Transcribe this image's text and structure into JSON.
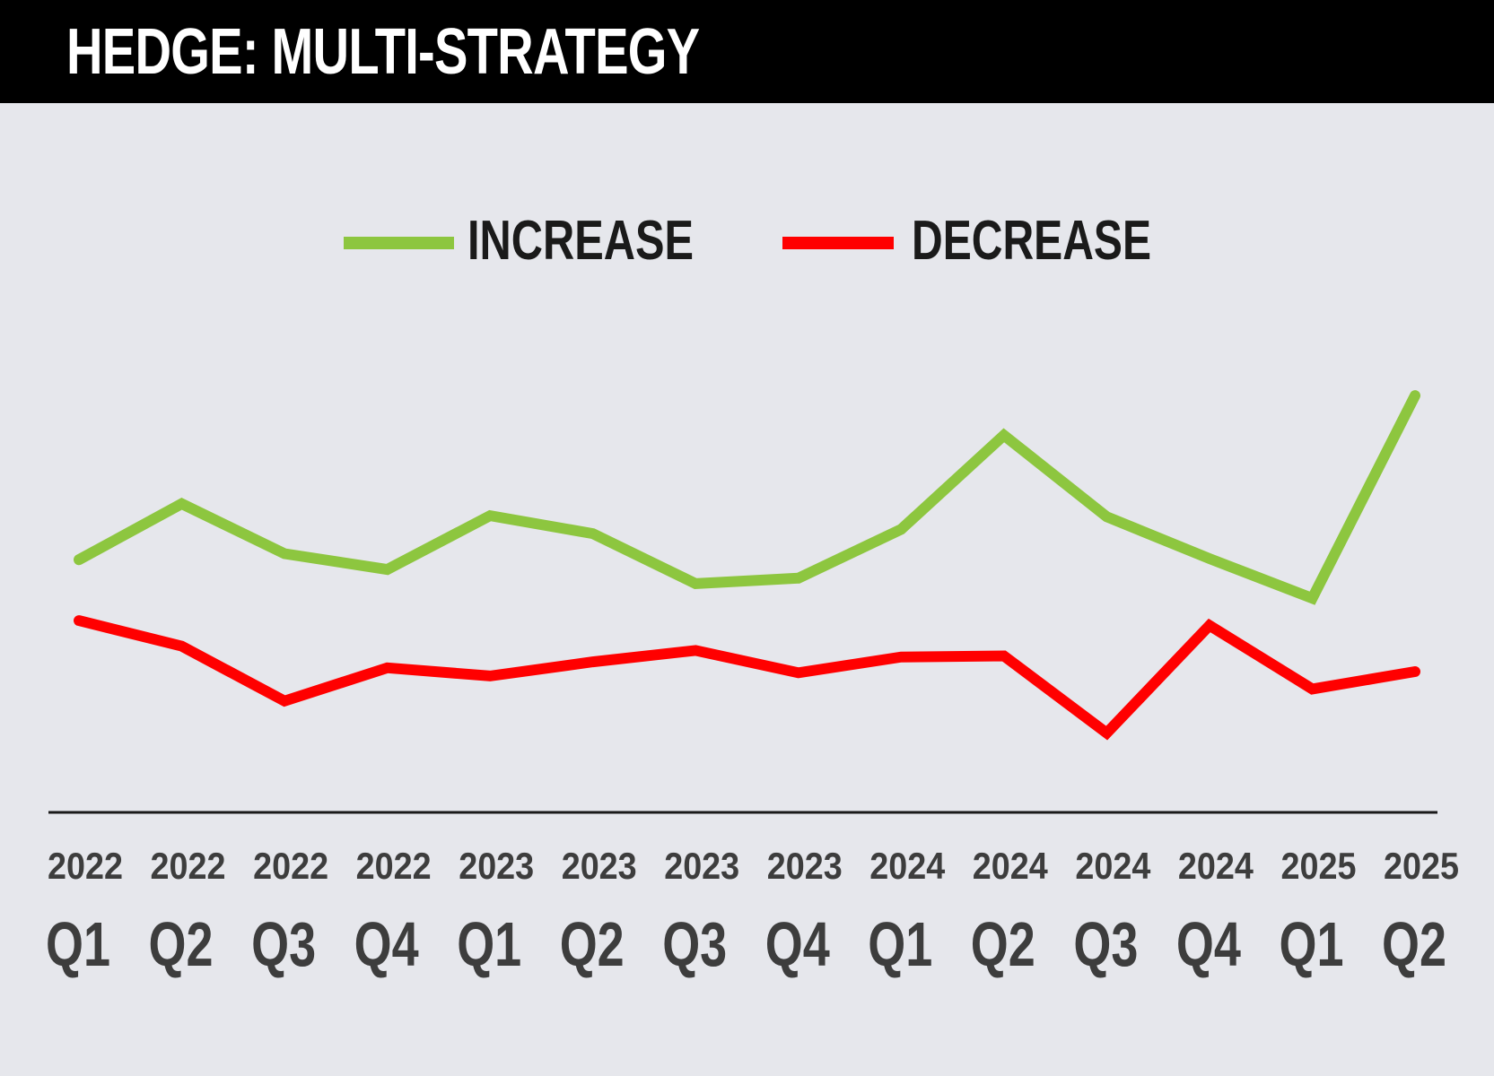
{
  "title": "HEDGE: MULTI-STRATEGY",
  "colors": {
    "background": "#e6e7ec",
    "title_bar": "#000000",
    "title_text": "#ffffff",
    "increase": "#8dc63f",
    "decrease": "#ff0000",
    "axis": "#1a1a1a",
    "tick_text": "#3d3d3d",
    "legend_text": "#1a1a1a"
  },
  "chart_data": {
    "type": "line",
    "title": "HEDGE: MULTI-STRATEGY",
    "xlabel": "",
    "ylabel": "",
    "grid": false,
    "legend_position": "top-center",
    "categories": [
      {
        "year": "2022",
        "quarter": "Q1"
      },
      {
        "year": "2022",
        "quarter": "Q2"
      },
      {
        "year": "2022",
        "quarter": "Q3"
      },
      {
        "year": "2022",
        "quarter": "Q4"
      },
      {
        "year": "2023",
        "quarter": "Q1"
      },
      {
        "year": "2023",
        "quarter": "Q2"
      },
      {
        "year": "2023",
        "quarter": "Q3"
      },
      {
        "year": "2023",
        "quarter": "Q4"
      },
      {
        "year": "2024",
        "quarter": "Q1"
      },
      {
        "year": "2024",
        "quarter": "Q2"
      },
      {
        "year": "2024",
        "quarter": "Q3"
      },
      {
        "year": "2024",
        "quarter": "Q4"
      },
      {
        "year": "2025",
        "quarter": "Q1"
      },
      {
        "year": "2025",
        "quarter": "Q2"
      }
    ],
    "ylim": [
      0,
      100
    ],
    "series": [
      {
        "name": "INCREASE",
        "color": "#8dc63f",
        "values": [
          46.5,
          56.8,
          47.6,
          44.7,
          54.6,
          51.3,
          42.1,
          43.1,
          52.1,
          69.4,
          54.4,
          46.7,
          39.4,
          76.7
        ]
      },
      {
        "name": "DECREASE",
        "color": "#ff0000",
        "values": [
          35.3,
          30.6,
          20.5,
          26.6,
          25.1,
          27.7,
          29.8,
          25.7,
          28.6,
          28.8,
          14.6,
          34.4,
          22.7,
          25.9
        ]
      }
    ]
  }
}
